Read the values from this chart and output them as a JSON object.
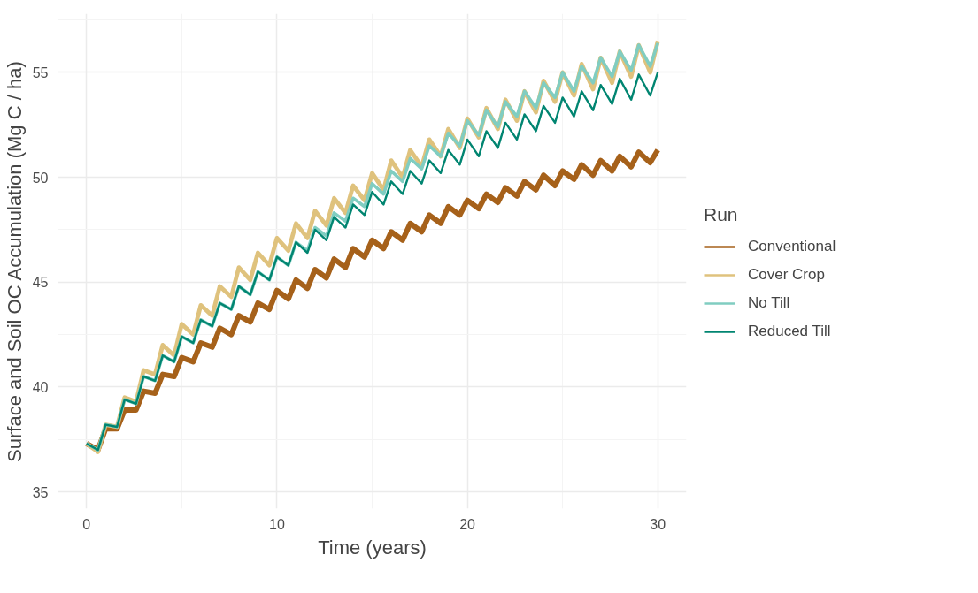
{
  "chart_data": {
    "type": "line",
    "xlabel": "Time (years)",
    "ylabel": "Surface and Soil OC Accumulation (Mg C / ha)",
    "legend_title": "Run",
    "x": [
      0,
      0.6,
      1,
      1.6,
      2,
      2.6,
      3,
      3.6,
      4,
      4.6,
      5,
      5.6,
      6,
      6.6,
      7,
      7.6,
      8,
      8.6,
      9,
      9.6,
      10,
      10.6,
      11,
      11.6,
      12,
      12.6,
      13,
      13.6,
      14,
      14.6,
      15,
      15.6,
      16,
      16.6,
      17,
      17.6,
      18,
      18.6,
      19,
      19.6,
      20,
      20.6,
      21,
      21.6,
      22,
      22.6,
      23,
      23.6,
      24,
      24.6,
      25,
      25.6,
      26,
      26.6,
      27,
      27.6,
      28,
      28.6,
      29,
      29.6,
      30
    ],
    "series": [
      {
        "name": "Conventional",
        "color": "#a6611a",
        "values": [
          37.3,
          37.0,
          38.0,
          38.0,
          38.9,
          38.9,
          39.8,
          39.7,
          40.6,
          40.5,
          41.4,
          41.2,
          42.1,
          41.9,
          42.8,
          42.5,
          43.4,
          43.1,
          44.0,
          43.7,
          44.6,
          44.2,
          45.1,
          44.7,
          45.6,
          45.2,
          46.1,
          45.7,
          46.6,
          46.2,
          47.0,
          46.6,
          47.4,
          47.0,
          47.8,
          47.4,
          48.2,
          47.8,
          48.6,
          48.2,
          48.9,
          48.5,
          49.2,
          48.8,
          49.5,
          49.1,
          49.8,
          49.4,
          50.1,
          49.6,
          50.3,
          49.9,
          50.6,
          50.1,
          50.8,
          50.3,
          51.0,
          50.5,
          51.2,
          50.7,
          51.3
        ]
      },
      {
        "name": "Cover Crop",
        "color": "#dfc27d",
        "values": [
          37.3,
          36.9,
          38.2,
          38.1,
          39.5,
          39.3,
          40.8,
          40.6,
          42.0,
          41.5,
          43.0,
          42.5,
          43.9,
          43.4,
          44.8,
          44.3,
          45.7,
          45.1,
          46.4,
          45.8,
          47.1,
          46.5,
          47.8,
          47.1,
          48.4,
          47.7,
          49.0,
          48.3,
          49.6,
          48.9,
          50.2,
          49.4,
          50.8,
          50.0,
          51.3,
          50.5,
          51.8,
          51.0,
          52.3,
          51.4,
          52.8,
          51.9,
          53.3,
          52.3,
          53.7,
          52.7,
          54.1,
          53.1,
          54.6,
          53.6,
          55.0,
          53.9,
          55.4,
          54.2,
          55.7,
          54.5,
          56.0,
          54.8,
          56.3,
          55.0,
          56.5
        ]
      },
      {
        "name": "No Till",
        "color": "#80cdc1",
        "values": [
          37.3,
          37.0,
          38.2,
          38.1,
          39.4,
          39.2,
          40.5,
          40.3,
          41.5,
          41.2,
          42.4,
          42.1,
          43.2,
          42.9,
          44.0,
          43.7,
          44.8,
          44.4,
          45.5,
          45.1,
          46.2,
          45.8,
          46.9,
          46.5,
          47.6,
          47.2,
          48.3,
          47.9,
          49.0,
          48.6,
          49.7,
          49.2,
          50.3,
          49.8,
          50.9,
          50.4,
          51.5,
          51.0,
          52.1,
          51.5,
          52.7,
          52.0,
          53.2,
          52.4,
          53.6,
          52.9,
          54.1,
          53.3,
          54.5,
          53.8,
          55.0,
          54.1,
          55.3,
          54.5,
          55.7,
          54.8,
          56.0,
          55.1,
          56.3,
          55.3,
          56.4
        ]
      },
      {
        "name": "Reduced Till",
        "color": "#018571",
        "values": [
          37.3,
          37.0,
          38.2,
          38.1,
          39.4,
          39.2,
          40.5,
          40.3,
          41.5,
          41.2,
          42.4,
          42.1,
          43.2,
          42.9,
          44.0,
          43.7,
          44.8,
          44.4,
          45.5,
          45.1,
          46.2,
          45.8,
          46.9,
          46.4,
          47.5,
          47.0,
          48.1,
          47.6,
          48.7,
          48.2,
          49.3,
          48.7,
          49.8,
          49.2,
          50.3,
          49.7,
          50.8,
          50.2,
          51.3,
          50.6,
          51.8,
          51.0,
          52.2,
          51.4,
          52.6,
          51.8,
          53.0,
          52.2,
          53.4,
          52.6,
          53.8,
          52.9,
          54.1,
          53.2,
          54.4,
          53.5,
          54.7,
          53.7,
          54.9,
          53.9,
          55.0
        ]
      }
    ],
    "xlim": [
      -1.5,
      31.5
    ],
    "xticks": [
      0,
      10,
      20,
      30
    ],
    "ylim": [
      34.2,
      57.8
    ],
    "yticks": [
      35,
      40,
      45,
      50,
      55
    ],
    "grid": true,
    "legend": "right",
    "line_style": "solid",
    "marker": "none"
  }
}
